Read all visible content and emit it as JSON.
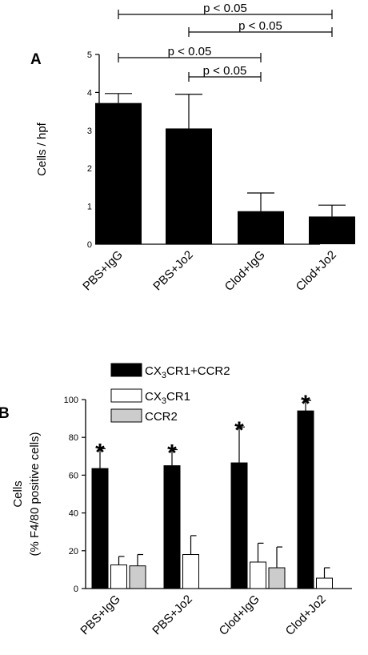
{
  "chart_data": [
    {
      "panel_label": "A",
      "type": "bar",
      "ylabel": "Cells / hpf",
      "ylim": [
        0,
        5
      ],
      "yticks": [
        0,
        1,
        2,
        3,
        4,
        5
      ],
      "categories": [
        "PBS+IgG",
        "PBS+Jo2",
        "Clod+IgG",
        "Clod+Jo2"
      ],
      "series": [
        {
          "values": [
            3.72,
            3.05,
            0.87,
            0.73
          ],
          "errors": [
            0.25,
            0.9,
            0.48,
            0.3
          ],
          "color": "#000000"
        }
      ],
      "significance": [
        {
          "from": 0,
          "to": 3,
          "label": "p < 0.05"
        },
        {
          "from": 1,
          "to": 3,
          "label": "p < 0.05"
        },
        {
          "from": 0,
          "to": 2,
          "label": "p < 0.05"
        },
        {
          "from": 1,
          "to": 2,
          "label": "p < 0.05"
        }
      ]
    },
    {
      "panel_label": "B",
      "type": "bar",
      "ylabel_line1": "Cells",
      "ylabel_line2": "(% F4/80 positive cells)",
      "ylim": [
        0,
        100
      ],
      "yticks": [
        0,
        20,
        40,
        60,
        80,
        100
      ],
      "categories": [
        "PBS+IgG",
        "PBS+Jo2",
        "Clod+IgG",
        "Clod+Jo2"
      ],
      "legend": [
        {
          "base": "CX",
          "sub": "3",
          "rest": "CR1+CCR2",
          "color": "#000000"
        },
        {
          "base": "CX",
          "sub": "3",
          "rest": "CR1",
          "color": "#ffffff"
        },
        {
          "base": "CCR2",
          "sub": "",
          "rest": "",
          "color": "#cccccc"
        }
      ],
      "series": [
        {
          "values": [
            63.5,
            65,
            66.5,
            94
          ],
          "errors": [
            10.5,
            8.5,
            19,
            5.5
          ],
          "color": "#000000"
        },
        {
          "values": [
            12.5,
            18,
            14,
            5.5
          ],
          "errors": [
            4.5,
            10,
            10,
            5.5
          ],
          "color": "#ffffff"
        },
        {
          "values": [
            12,
            null,
            11,
            null
          ],
          "errors": [
            6,
            null,
            11,
            null
          ],
          "color": "#cccccc"
        }
      ],
      "star_label": "*",
      "star_on_series": 0
    }
  ]
}
